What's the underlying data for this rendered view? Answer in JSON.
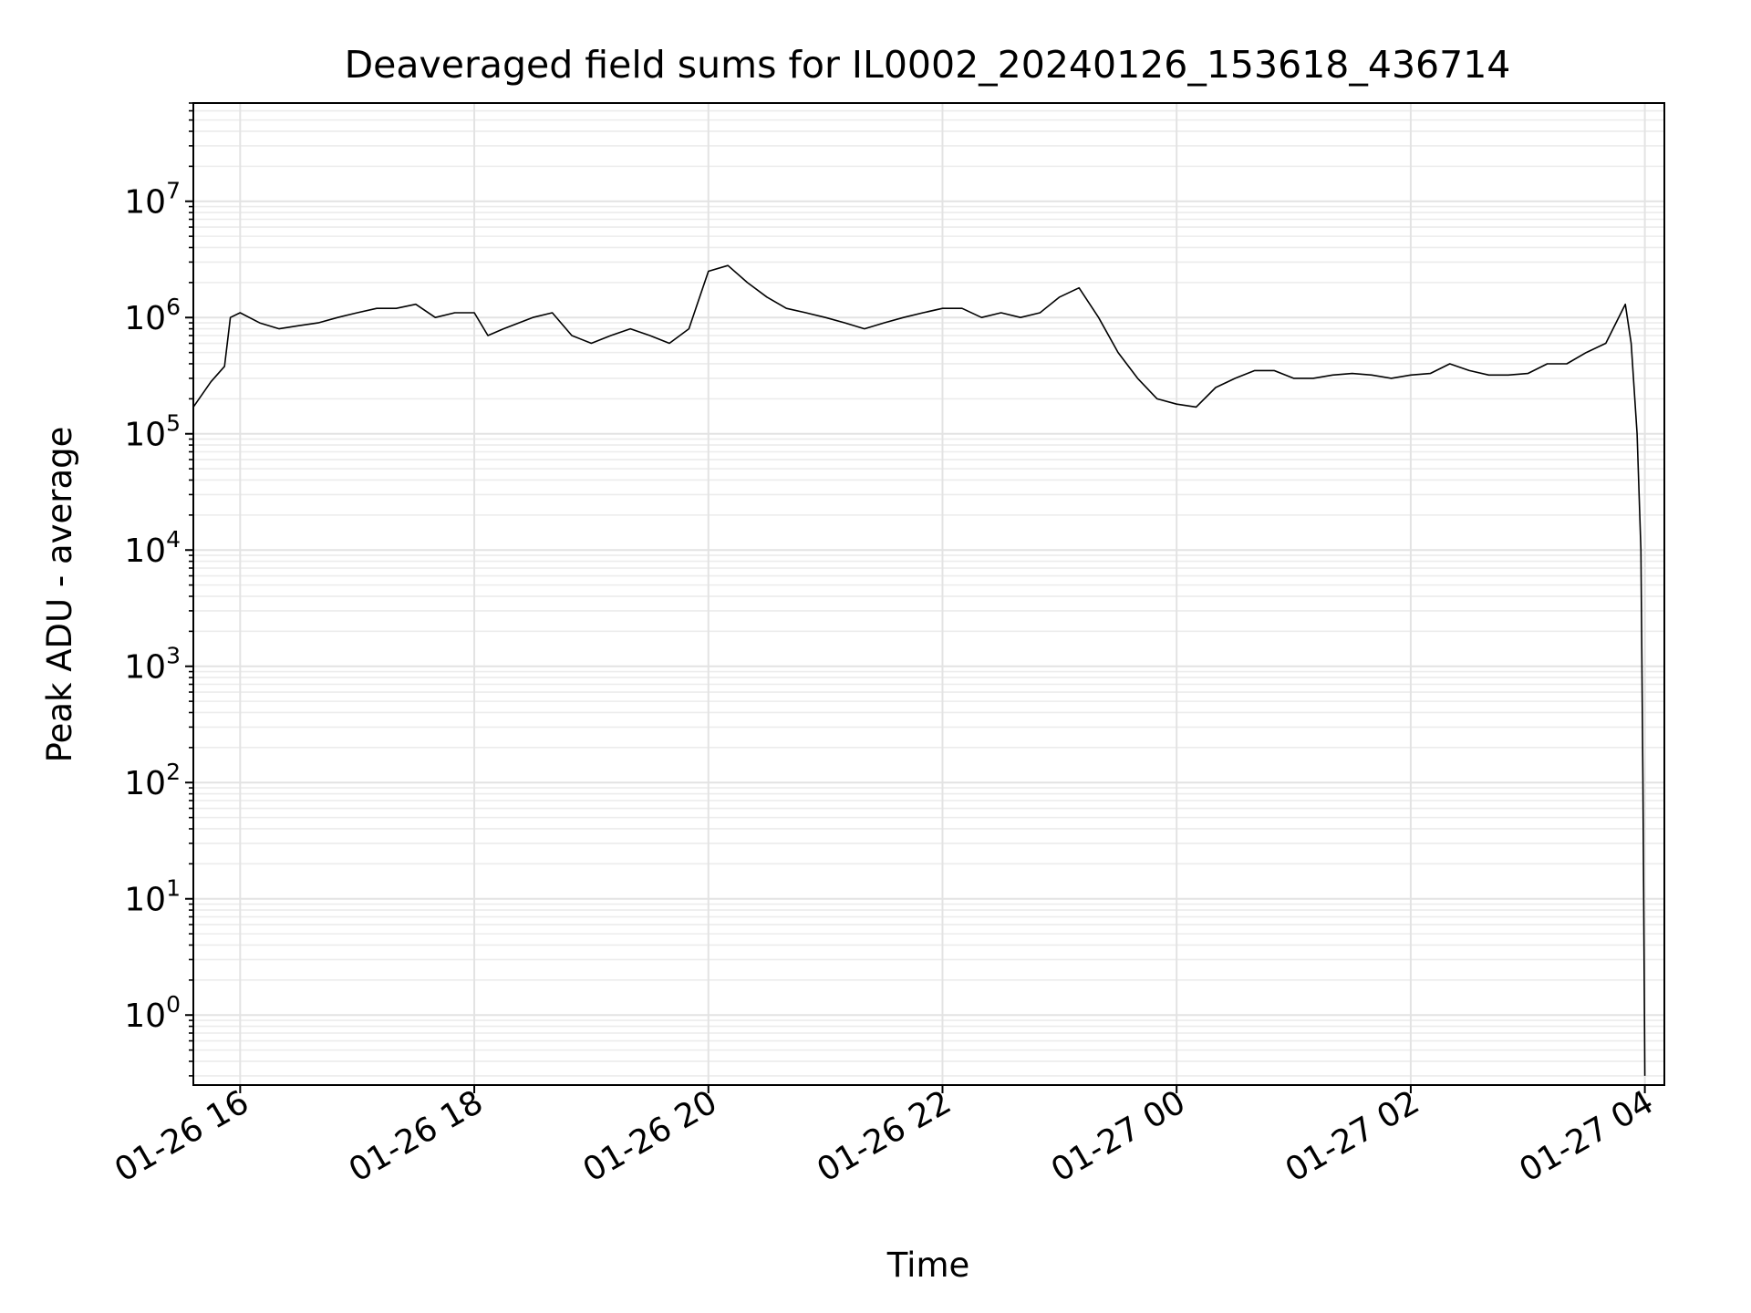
{
  "chart_data": {
    "type": "line",
    "title": "Deaveraged field sums for IL0002_20240126_153618_436714",
    "xlabel": "Time",
    "ylabel": "Peak ADU - average",
    "yscale": "log",
    "ylim": [
      0.25,
      70000000
    ],
    "xlim": [
      "2024-01-26 15:36",
      "2024-01-27 04:10"
    ],
    "grid": "both (major and minor)",
    "legend": "none",
    "line_color": "#000000",
    "x_ticks": [
      {
        "value": "2024-01-26 16:00",
        "label": "01-26 16"
      },
      {
        "value": "2024-01-26 18:00",
        "label": "01-26 18"
      },
      {
        "value": "2024-01-26 20:00",
        "label": "01-26 20"
      },
      {
        "value": "2024-01-26 22:00",
        "label": "01-26 22"
      },
      {
        "value": "2024-01-27 00:00",
        "label": "01-27 00"
      },
      {
        "value": "2024-01-27 02:00",
        "label": "01-27 02"
      },
      {
        "value": "2024-01-27 04:00",
        "label": "01-27 04"
      }
    ],
    "y_ticks": [
      {
        "value": 1,
        "base": "10",
        "exp": "0"
      },
      {
        "value": 10,
        "base": "10",
        "exp": "1"
      },
      {
        "value": 100,
        "base": "10",
        "exp": "2"
      },
      {
        "value": 1000,
        "base": "10",
        "exp": "3"
      },
      {
        "value": 10000,
        "base": "10",
        "exp": "4"
      },
      {
        "value": 100000,
        "base": "10",
        "exp": "5"
      },
      {
        "value": 1000000,
        "base": "10",
        "exp": "6"
      },
      {
        "value": 10000000,
        "base": "10",
        "exp": "7"
      }
    ],
    "series": [
      {
        "x": [
          "2024-01-26 15:36",
          "2024-01-26 15:45",
          "2024-01-26 15:52",
          "2024-01-26 15:55",
          "2024-01-26 16:00",
          "2024-01-26 16:10",
          "2024-01-26 16:20",
          "2024-01-26 16:30",
          "2024-01-26 16:40",
          "2024-01-26 16:50",
          "2024-01-26 17:00",
          "2024-01-26 17:10",
          "2024-01-26 17:20",
          "2024-01-26 17:30",
          "2024-01-26 17:40",
          "2024-01-26 17:50",
          "2024-01-26 18:00",
          "2024-01-26 18:07",
          "2024-01-26 18:15",
          "2024-01-26 18:30",
          "2024-01-26 18:40",
          "2024-01-26 18:50",
          "2024-01-26 19:00",
          "2024-01-26 19:10",
          "2024-01-26 19:20",
          "2024-01-26 19:30",
          "2024-01-26 19:40",
          "2024-01-26 19:50",
          "2024-01-26 20:00",
          "2024-01-26 20:10",
          "2024-01-26 20:20",
          "2024-01-26 20:30",
          "2024-01-26 20:40",
          "2024-01-26 20:50",
          "2024-01-26 21:00",
          "2024-01-26 21:10",
          "2024-01-26 21:20",
          "2024-01-26 21:30",
          "2024-01-26 21:40",
          "2024-01-26 21:50",
          "2024-01-26 22:00",
          "2024-01-26 22:10",
          "2024-01-26 22:20",
          "2024-01-26 22:30",
          "2024-01-26 22:40",
          "2024-01-26 22:50",
          "2024-01-26 23:00",
          "2024-01-26 23:10",
          "2024-01-26 23:20",
          "2024-01-26 23:30",
          "2024-01-26 23:40",
          "2024-01-26 23:50",
          "2024-01-27 00:00",
          "2024-01-27 00:10",
          "2024-01-27 00:20",
          "2024-01-27 00:30",
          "2024-01-27 00:40",
          "2024-01-27 00:50",
          "2024-01-27 01:00",
          "2024-01-27 01:10",
          "2024-01-27 01:20",
          "2024-01-27 01:30",
          "2024-01-27 01:40",
          "2024-01-27 01:50",
          "2024-01-27 02:00",
          "2024-01-27 02:10",
          "2024-01-27 02:20",
          "2024-01-27 02:30",
          "2024-01-27 02:40",
          "2024-01-27 02:50",
          "2024-01-27 03:00",
          "2024-01-27 03:10",
          "2024-01-27 03:20",
          "2024-01-27 03:30",
          "2024-01-27 03:40",
          "2024-01-27 03:50",
          "2024-01-27 03:53",
          "2024-01-27 03:56",
          "2024-01-27 03:58",
          "2024-01-27 03:59",
          "2024-01-27 04:00"
        ],
        "values": [
          170000,
          280000,
          380000,
          1000000,
          1100000,
          900000,
          800000,
          850000,
          900000,
          1000000,
          1100000,
          1200000,
          1200000,
          1300000,
          1000000,
          1100000,
          1100000,
          700000,
          800000,
          1000000,
          1100000,
          700000,
          600000,
          700000,
          800000,
          700000,
          600000,
          800000,
          2500000,
          2800000,
          2000000,
          1500000,
          1200000,
          1100000,
          1000000,
          900000,
          800000,
          900000,
          1000000,
          1100000,
          1200000,
          1200000,
          1000000,
          1100000,
          1000000,
          1100000,
          1500000,
          1800000,
          1000000,
          500000,
          300000,
          200000,
          180000,
          170000,
          250000,
          300000,
          350000,
          350000,
          300000,
          300000,
          320000,
          330000,
          320000,
          300000,
          320000,
          330000,
          400000,
          350000,
          320000,
          320000,
          330000,
          400000,
          400000,
          500000,
          600000,
          1300000,
          600000,
          100000,
          10000,
          100,
          0.3
        ]
      }
    ]
  }
}
